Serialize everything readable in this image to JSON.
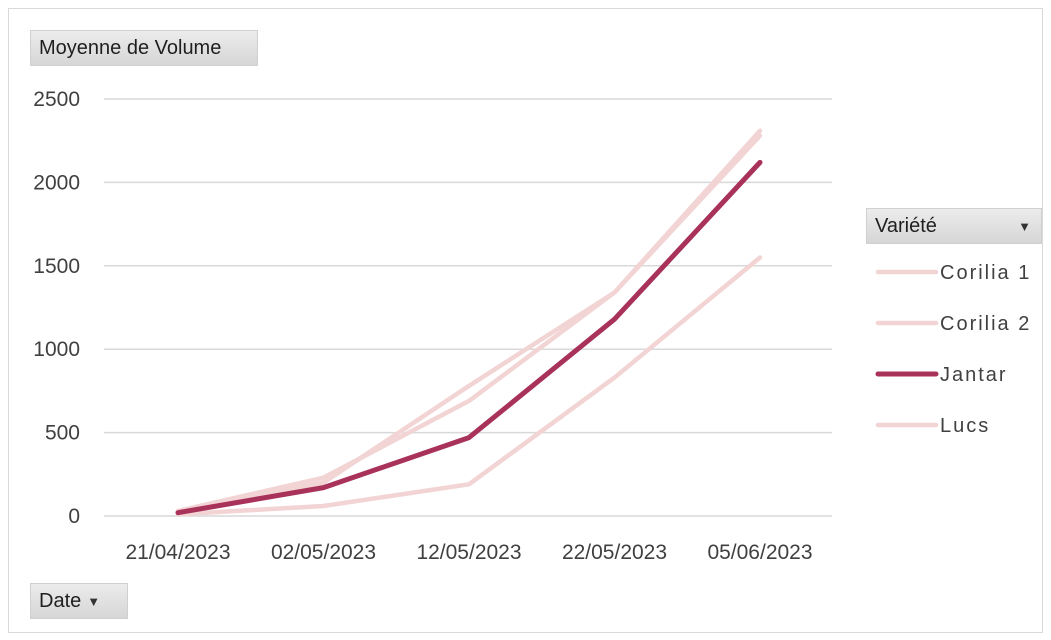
{
  "chart_data": {
    "type": "line",
    "value_field": "Moyenne de Volume",
    "axis_field": "Date",
    "legend_field": "Variété",
    "legend_placement": "right",
    "grid": true,
    "categories": [
      "21/04/2023",
      "02/05/2023",
      "12/05/2023",
      "22/05/2023",
      "05/06/2023"
    ],
    "ylim": [
      0,
      2500
    ],
    "yticks": [
      0,
      500,
      1000,
      1500,
      2000,
      2500
    ],
    "series": [
      {
        "name": "Corilia 1",
        "color": "#f2d4d4",
        "values": [
          30,
          230,
          690,
          1340,
          2280
        ]
      },
      {
        "name": "Corilia 2",
        "color": "#f2d4d4",
        "values": [
          30,
          200,
          780,
          1340,
          2310
        ]
      },
      {
        "name": "Lucs",
        "color": "#f2d4d4",
        "values": [
          10,
          60,
          190,
          830,
          1550
        ]
      },
      {
        "name": "Jantar",
        "color": "#a8325a",
        "values": [
          20,
          170,
          470,
          1180,
          2120
        ]
      }
    ],
    "legend_order": [
      "Corilia 1",
      "Corilia 2",
      "Jantar",
      "Lucs"
    ]
  }
}
